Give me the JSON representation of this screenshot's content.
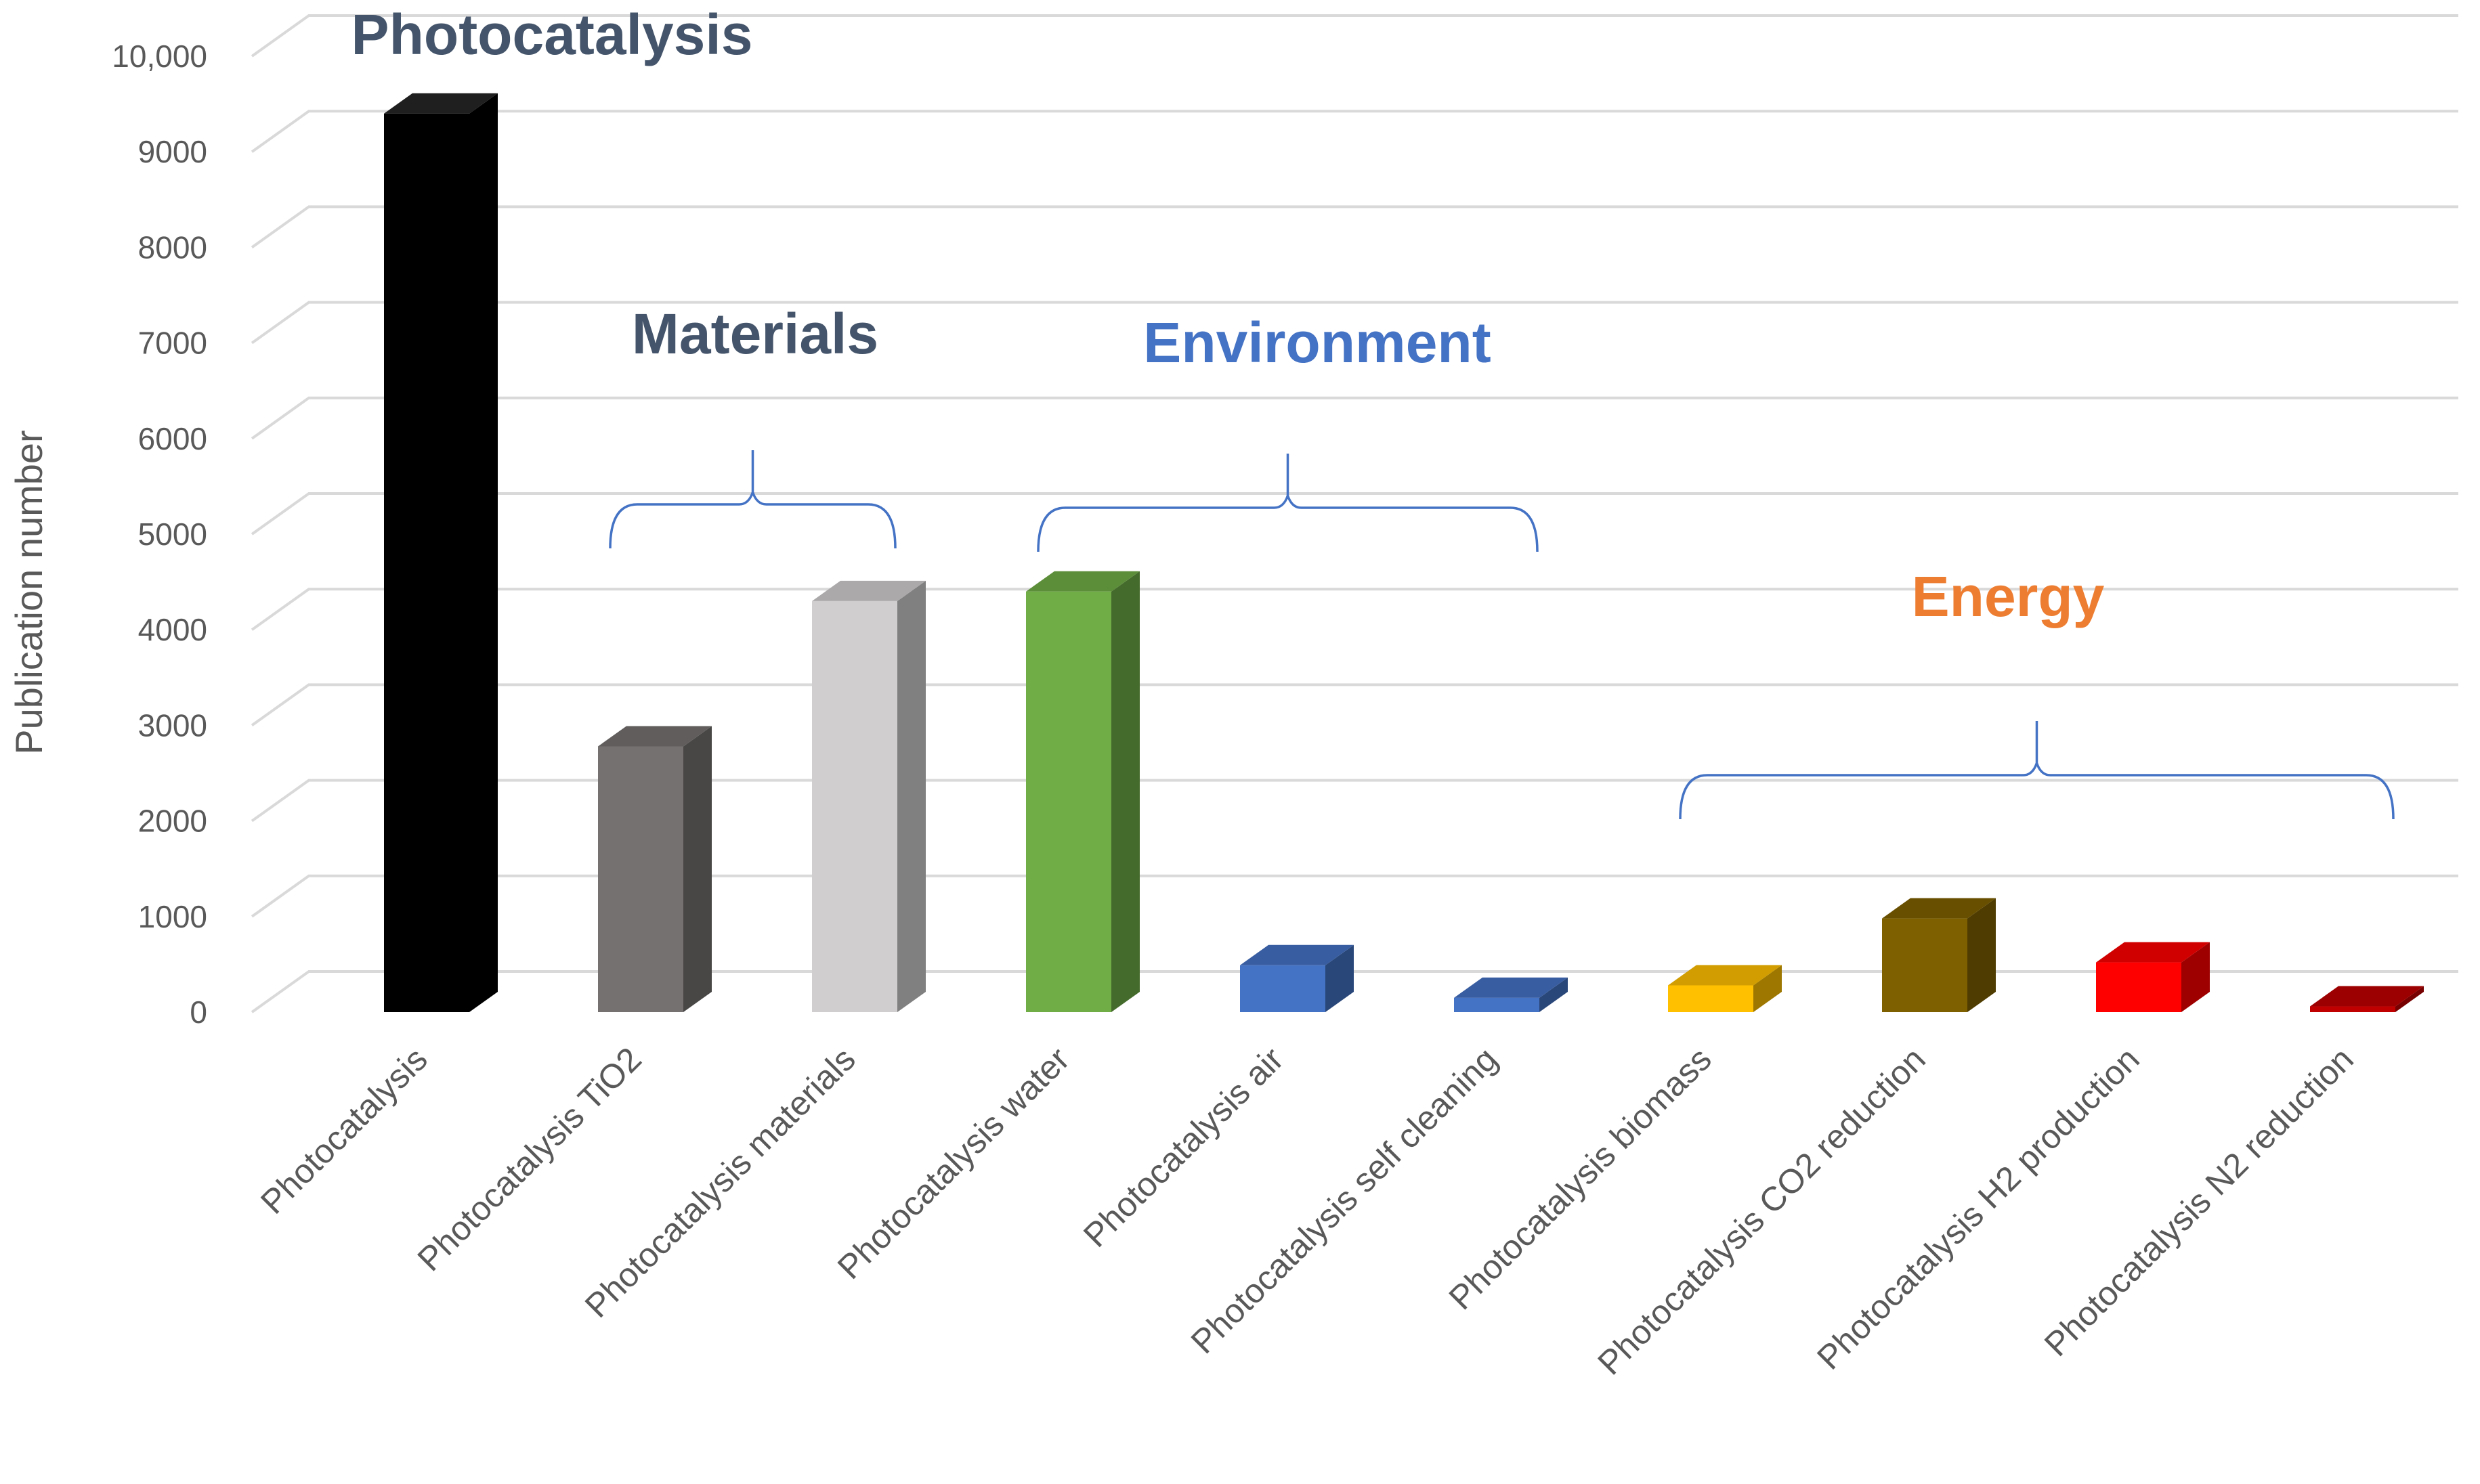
{
  "chart_data": {
    "type": "bar",
    "style": "3d-column",
    "title": "",
    "ylabel": "Publication number",
    "xlabel": "",
    "ylim": [
      0,
      10000
    ],
    "yticks": [
      0,
      1000,
      2000,
      3000,
      4000,
      5000,
      6000,
      7000,
      8000,
      9000,
      10000
    ],
    "ytick_labels": [
      "0",
      "1000",
      "2000",
      "3000",
      "4000",
      "5000",
      "6000",
      "7000",
      "8000",
      "9000",
      "10,000"
    ],
    "grid": true,
    "categories": [
      "Photocatalysis",
      "Photocatalysis TiO2",
      "Photocatalysis materials",
      "Photocatalysis water",
      "Photocatalysis air",
      "Photocatalysis self cleaning",
      "Photocatalysis biomass",
      "Photocatalysis CO2 reduction",
      "Photocatalysis H2 production",
      "Photocatalysis N2 reduction"
    ],
    "values": [
      9400,
      2780,
      4300,
      4400,
      490,
      150,
      280,
      980,
      520,
      60
    ],
    "bar_colors": [
      "#000000",
      "#767171",
      "#d0cece",
      "#70ad47",
      "#4472c4",
      "#4472c4",
      "#ffc000",
      "#7f6000",
      "#ff0000",
      "#c00000"
    ],
    "annotations": [
      {
        "text": "Photocatalysis",
        "color": "#44546a"
      },
      {
        "text": "Materials",
        "color": "#44546a"
      },
      {
        "text": "Environment",
        "color": "#4472c4"
      },
      {
        "text": "Energy",
        "color": "#ed7d31"
      }
    ],
    "groups": [
      {
        "label": "Materials",
        "from": 1,
        "to": 2
      },
      {
        "label": "Environment",
        "from": 3,
        "to": 5
      },
      {
        "label": "Energy",
        "from": 6,
        "to": 9
      }
    ]
  }
}
